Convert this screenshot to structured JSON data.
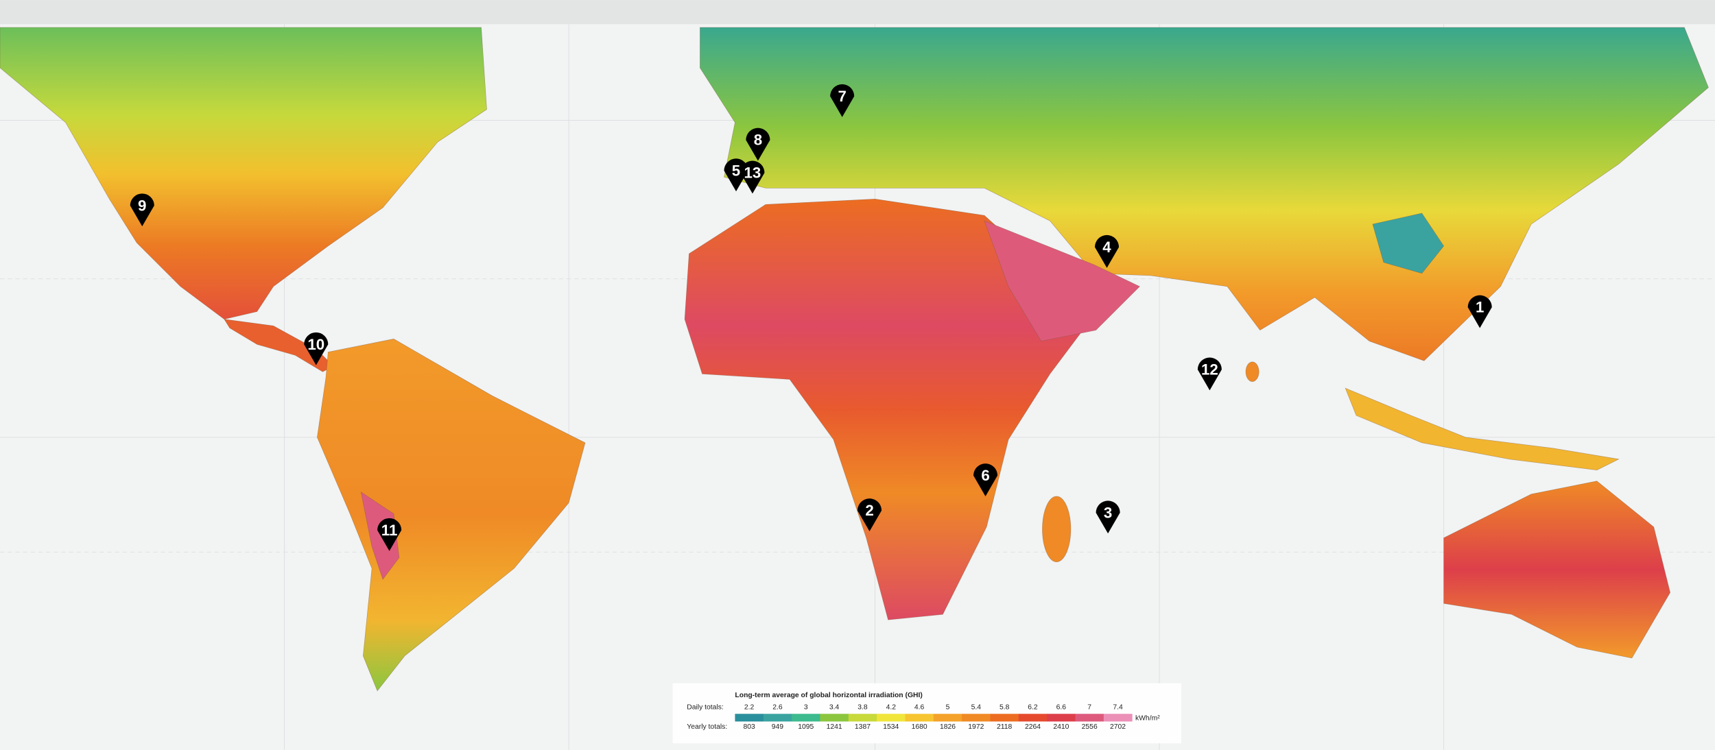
{
  "markers": [
    "1",
    "2",
    "3",
    "4",
    "5",
    "6",
    "7",
    "8",
    "9",
    "10",
    "11",
    "12",
    "13"
  ],
  "legend": {
    "title": "Long-term average of global horizontal irradiation (GHI)",
    "daily_label": "Daily totals:",
    "daily": [
      2.2,
      2.6,
      3.0,
      3.4,
      3.8,
      4.2,
      4.6,
      5.0,
      5.4,
      5.8,
      6.2,
      6.6,
      7.0,
      7.4
    ],
    "yearly_label": "Yearly totals:",
    "yearly": [
      803,
      949,
      1095,
      1241,
      1387,
      1534,
      1680,
      1826,
      1972,
      2118,
      2264,
      2410,
      2556,
      2702
    ],
    "unit": "kWh/m²",
    "colors": [
      "#2a8f9c",
      "#3aa3a0",
      "#3dba8e",
      "#8cc63f",
      "#c8d93a",
      "#f0e53a",
      "#f7c530",
      "#f5a22a",
      "#f08a24",
      "#ec6d22",
      "#e64a2e",
      "#dd3f4a",
      "#dd5a7d",
      "#ec90b8"
    ]
  }
}
